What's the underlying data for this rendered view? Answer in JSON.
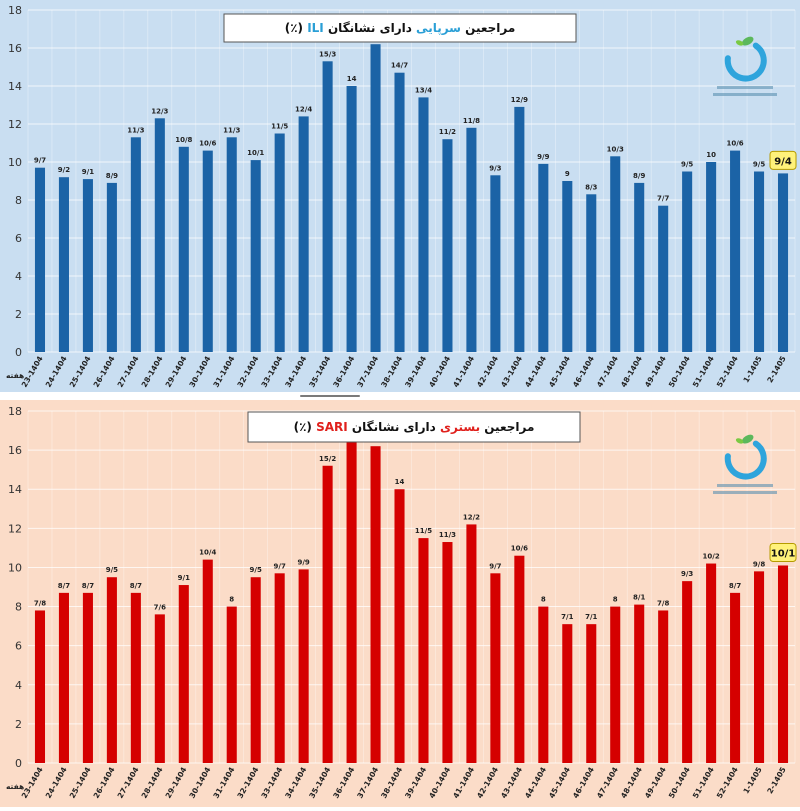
{
  "week_label": "هفته",
  "charts": [
    {
      "type": "bar",
      "title_parts": [
        {
          "text": "مراجعین ",
          "color": "#111111"
        },
        {
          "text": "سرپایی",
          "color": "#2a9fd6"
        },
        {
          "text": " دارای نشانگان ",
          "color": "#111111"
        },
        {
          "text": "ILI",
          "color": "#2a9fd6"
        },
        {
          "text": " (٪)",
          "color": "#111111"
        }
      ],
      "background": "#c9def1",
      "bar_color": "#1b63a6",
      "highlight_fill": "#fff27a",
      "highlight_stroke": "#b59b00",
      "ylim": [
        0,
        18
      ],
      "yticks": [
        0,
        2,
        4,
        6,
        8,
        10,
        12,
        14,
        16,
        18
      ],
      "categories": [
        "23-1404",
        "24-1404",
        "25-1404",
        "26-1404",
        "27-1404",
        "28-1404",
        "29-1404",
        "30-1404",
        "31-1404",
        "32-1404",
        "33-1404",
        "34-1404",
        "35-1404",
        "36-1404",
        "37-1404",
        "38-1404",
        "39-1404",
        "40-1404",
        "41-1404",
        "42-1404",
        "43-1404",
        "44-1404",
        "45-1404",
        "46-1404",
        "47-1404",
        "48-1404",
        "49-1404",
        "50-1404",
        "51-1404",
        "52-1404",
        "1-1405",
        "2-1405"
      ],
      "values": [
        9.7,
        9.2,
        9.1,
        8.9,
        11.3,
        12.3,
        10.8,
        10.6,
        11.3,
        10.1,
        11.5,
        12.4,
        15.3,
        14,
        16.2,
        14.7,
        13.4,
        11.2,
        11.8,
        9.3,
        12.9,
        9.9,
        9,
        8.3,
        10.3,
        8.9,
        7.7,
        9.5,
        10,
        10.6,
        9.5,
        9.4
      ],
      "labels": [
        "9/7",
        "9/2",
        "9/1",
        "8/9",
        "11/3",
        "12/3",
        "10/8",
        "10/6",
        "11/3",
        "10/1",
        "11/5",
        "12/4",
        "15/3",
        "14",
        "",
        "14/7",
        "13/4",
        "11/2",
        "11/8",
        "9/3",
        "12/9",
        "9/9",
        "9",
        "8/3",
        "10/3",
        "8/9",
        "7/7",
        "9/5",
        "10",
        "10/6",
        "9/5",
        "9/4"
      ],
      "highlight_index": 31
    },
    {
      "type": "bar",
      "title_parts": [
        {
          "text": "مراجعین ",
          "color": "#111111"
        },
        {
          "text": "بستری",
          "color": "#e0201c"
        },
        {
          "text": " دارای نشانگان ",
          "color": "#111111"
        },
        {
          "text": "SARI",
          "color": "#e0201c"
        },
        {
          "text": " (٪)",
          "color": "#111111"
        }
      ],
      "background": "#fbdcc8",
      "bar_color": "#d50000",
      "highlight_fill": "#fff27a",
      "highlight_stroke": "#b59b00",
      "ylim": [
        0,
        18
      ],
      "yticks": [
        0,
        2,
        4,
        6,
        8,
        10,
        12,
        14,
        16,
        18
      ],
      "categories": [
        "23-1404",
        "24-1404",
        "25-1404",
        "26-1404",
        "27-1404",
        "28-1404",
        "29-1404",
        "30-1404",
        "31-1404",
        "32-1404",
        "33-1404",
        "34-1404",
        "35-1404",
        "36-1404",
        "37-1404",
        "38-1404",
        "39-1404",
        "40-1404",
        "41-1404",
        "42-1404",
        "43-1404",
        "44-1404",
        "45-1404",
        "46-1404",
        "47-1404",
        "48-1404",
        "49-1404",
        "50-1404",
        "51-1404",
        "52-1404",
        "1-1405",
        "2-1405"
      ],
      "values": [
        7.8,
        8.7,
        8.7,
        9.5,
        8.7,
        7.6,
        9.1,
        10.4,
        8,
        9.5,
        9.7,
        9.9,
        15.2,
        16.5,
        16.2,
        14,
        11.5,
        11.3,
        12.2,
        9.7,
        10.6,
        8,
        7.1,
        7.1,
        8,
        8.1,
        7.8,
        9.3,
        10.2,
        8.7,
        9.8,
        10.1
      ],
      "labels": [
        "7/8",
        "8/7",
        "8/7",
        "9/5",
        "8/7",
        "7/6",
        "9/1",
        "10/4",
        "8",
        "9/5",
        "9/7",
        "9/9",
        "15/2",
        "",
        "",
        "14",
        "11/5",
        "11/3",
        "12/2",
        "9/7",
        "10/6",
        "8",
        "7/1",
        "7/1",
        "8",
        "8/1",
        "7/8",
        "9/3",
        "10/2",
        "8/7",
        "9/8",
        "10/1"
      ],
      "highlight_index": 31
    }
  ]
}
